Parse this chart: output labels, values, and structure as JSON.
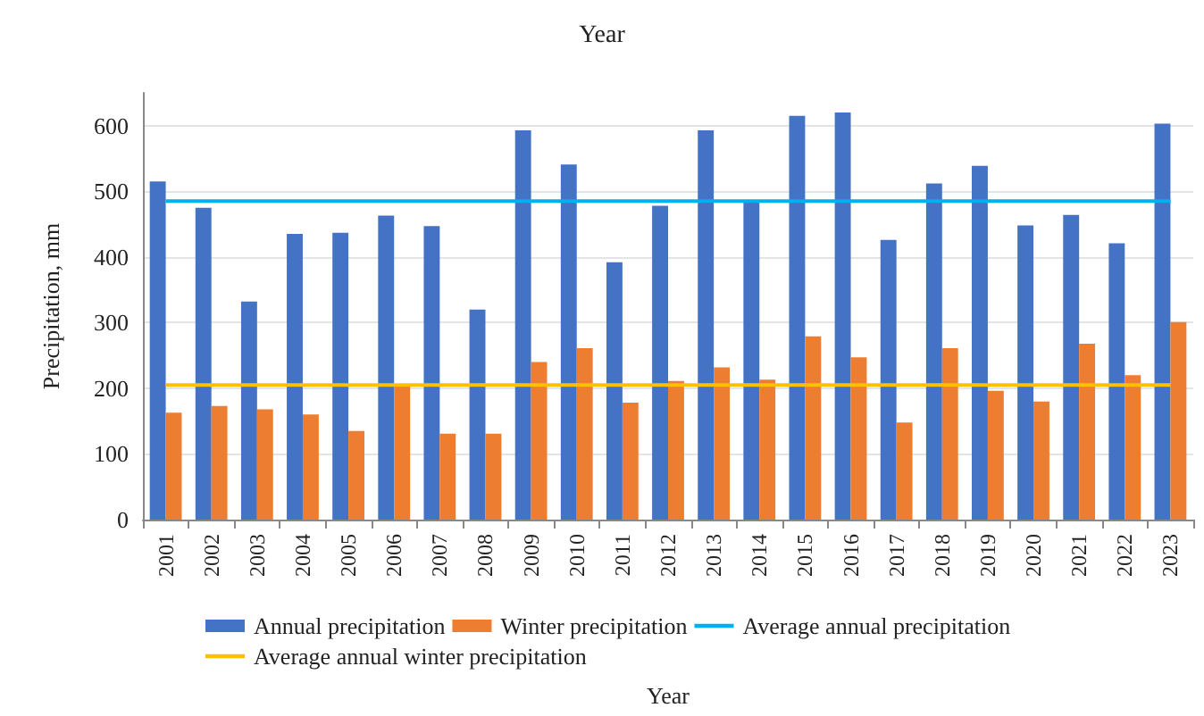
{
  "chart_data": {
    "type": "bar",
    "title": "Year",
    "xlabel": "Year",
    "ylabel": "Precipitation, mm",
    "categories": [
      "2001",
      "2002",
      "2003",
      "2004",
      "2005",
      "2006",
      "2007",
      "2008",
      "2009",
      "2010",
      "2011",
      "2012",
      "2013",
      "2014",
      "2015",
      "2016",
      "2017",
      "2018",
      "2019",
      "2020",
      "2021",
      "2022",
      "2023"
    ],
    "series": [
      {
        "name": "Annual precipitation",
        "color": "#4472c4",
        "values": [
          515,
          475,
          332,
          435,
          437,
          463,
          447,
          320,
          593,
          541,
          392,
          478,
          593,
          484,
          615,
          620,
          426,
          512,
          539,
          448,
          464,
          421,
          603
        ]
      },
      {
        "name": "Winter precipitation",
        "color": "#ed7d31",
        "values": [
          163,
          173,
          168,
          160,
          135,
          205,
          131,
          131,
          240,
          261,
          178,
          211,
          232,
          213,
          279,
          247,
          148,
          261,
          196,
          180,
          268,
          220,
          301
        ]
      },
      {
        "name": "Average annual precipitation",
        "type": "line",
        "color": "#00b0f0",
        "values": [
          485,
          485,
          485,
          485,
          485,
          485,
          485,
          485,
          485,
          485,
          485,
          485,
          485,
          485,
          485,
          485,
          485,
          485,
          485,
          485,
          485,
          485,
          485
        ]
      },
      {
        "name": "Average annual winter precipitation",
        "type": "line",
        "color": "#ffc000",
        "values": [
          205,
          205,
          205,
          205,
          205,
          205,
          205,
          205,
          205,
          205,
          205,
          205,
          205,
          205,
          205,
          205,
          205,
          205,
          205,
          205,
          205,
          205,
          205
        ]
      }
    ],
    "ylim": [
      0,
      650
    ],
    "yticks": [
      0,
      100,
      200,
      300,
      400,
      500,
      600
    ],
    "grid": "y",
    "legend": "bottom",
    "marker": "none"
  }
}
